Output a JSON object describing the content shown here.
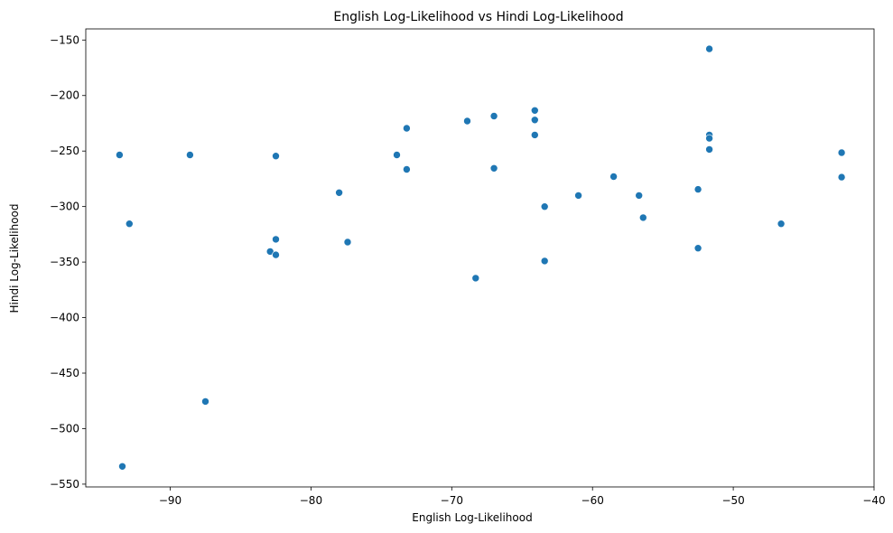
{
  "chart_data": {
    "type": "scatter",
    "title": "English Log-Likelihood vs Hindi Log-Likelihood",
    "xlabel": "English Log-Likelihood",
    "ylabel": "Hindi Log-Likelihood",
    "xlim": [
      -96.0,
      -40.0
    ],
    "ylim": [
      -552.5,
      -140.0
    ],
    "xticks": [
      -90,
      -80,
      -70,
      -60,
      -50,
      -40
    ],
    "yticks": [
      -550,
      -500,
      -450,
      -400,
      -350,
      -300,
      -250,
      -200,
      -150
    ],
    "grid": false,
    "color": "#1f77b4",
    "points": [
      {
        "x": -93.6,
        "y": -253.5
      },
      {
        "x": -93.4,
        "y": -534.0
      },
      {
        "x": -92.9,
        "y": -315.5
      },
      {
        "x": -88.6,
        "y": -253.5
      },
      {
        "x": -87.5,
        "y": -475.5
      },
      {
        "x": -82.9,
        "y": -340.5
      },
      {
        "x": -82.5,
        "y": -254.5
      },
      {
        "x": -82.5,
        "y": -329.5
      },
      {
        "x": -82.5,
        "y": -343.5
      },
      {
        "x": -78.0,
        "y": -287.5
      },
      {
        "x": -77.4,
        "y": -332.0
      },
      {
        "x": -73.9,
        "y": -253.5
      },
      {
        "x": -73.2,
        "y": -229.5
      },
      {
        "x": -73.2,
        "y": -266.5
      },
      {
        "x": -68.9,
        "y": -223.0
      },
      {
        "x": -68.3,
        "y": -364.5
      },
      {
        "x": -67.0,
        "y": -218.5
      },
      {
        "x": -67.0,
        "y": -265.5
      },
      {
        "x": -64.1,
        "y": -213.5
      },
      {
        "x": -64.1,
        "y": -222.0
      },
      {
        "x": -64.1,
        "y": -235.5
      },
      {
        "x": -63.4,
        "y": -300.0
      },
      {
        "x": -63.4,
        "y": -349.0
      },
      {
        "x": -61.0,
        "y": -290.0
      },
      {
        "x": -58.5,
        "y": -273.0
      },
      {
        "x": -56.7,
        "y": -290.0
      },
      {
        "x": -56.4,
        "y": -310.0
      },
      {
        "x": -52.5,
        "y": -284.5
      },
      {
        "x": -52.5,
        "y": -337.5
      },
      {
        "x": -51.7,
        "y": -158.0
      },
      {
        "x": -51.7,
        "y": -235.5
      },
      {
        "x": -51.7,
        "y": -238.5
      },
      {
        "x": -51.7,
        "y": -248.5
      },
      {
        "x": -46.6,
        "y": -315.5
      },
      {
        "x": -42.3,
        "y": -251.5
      },
      {
        "x": -42.3,
        "y": -273.5
      }
    ]
  }
}
